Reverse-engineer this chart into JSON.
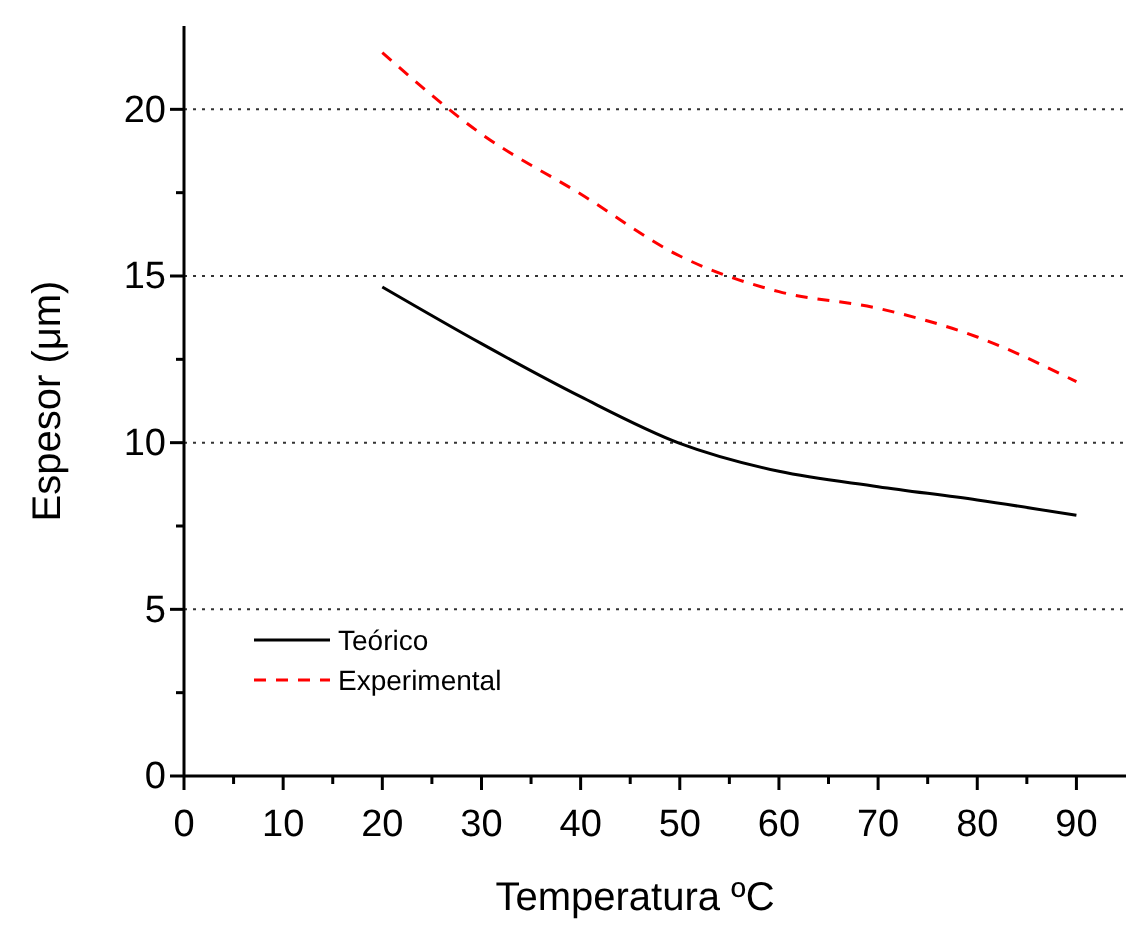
{
  "chart_data": {
    "type": "line",
    "xlabel": "Temperatura ºC",
    "ylabel": "Espesor (μm)",
    "xlim": [
      0,
      95
    ],
    "ylim": [
      0,
      22.5
    ],
    "xticks": [
      0,
      {
        "value": 5,
        "label": null
      },
      10,
      {
        "value": 15,
        "label": null
      },
      20,
      {
        "value": 25,
        "label": null
      },
      30,
      {
        "value": 35,
        "label": null
      },
      40,
      {
        "value": 45,
        "label": null
      },
      50,
      {
        "value": 55,
        "label": null
      },
      60,
      {
        "value": 65,
        "label": null
      },
      70,
      {
        "value": 75,
        "label": null
      },
      80,
      {
        "value": 85,
        "label": null
      },
      90
    ],
    "yticks": [
      0,
      {
        "value": 2.5,
        "label": null
      },
      5,
      {
        "value": 7.5,
        "label": null
      },
      10,
      {
        "value": 12.5,
        "label": null
      },
      15,
      {
        "value": 17.5,
        "label": null
      },
      20
    ],
    "grid": "y",
    "legend": "bottom left",
    "marker": "none",
    "x": [
      20,
      30,
      40,
      50,
      60,
      70,
      80,
      90
    ],
    "series": [
      {
        "name": "Teórico",
        "color": "#000000",
        "line_style": "solid",
        "values": [
          14.67,
          12.97,
          11.38,
          9.98,
          9.14,
          8.68,
          8.28,
          7.82
        ]
      },
      {
        "name": "Experimental",
        "color": "#ff0000",
        "line_style": "dashed",
        "values": [
          21.7,
          19.26,
          17.46,
          15.6,
          14.53,
          14.03,
          13.17,
          11.83
        ]
      }
    ]
  }
}
